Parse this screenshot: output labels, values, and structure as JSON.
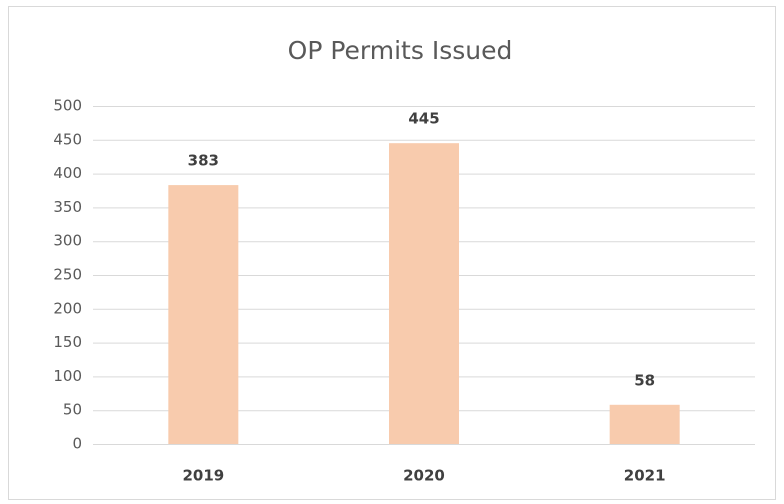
{
  "chart_data": {
    "type": "bar",
    "title": "OP Permits Issued",
    "categories": [
      "2019",
      "2020",
      "2021"
    ],
    "values": [
      383,
      445,
      58
    ],
    "color": "#f8cbad",
    "ylim": [
      0,
      500
    ],
    "yticks": [
      0,
      50,
      100,
      150,
      200,
      250,
      300,
      350,
      400,
      450,
      500
    ],
    "grid": true,
    "data_labels": true
  }
}
